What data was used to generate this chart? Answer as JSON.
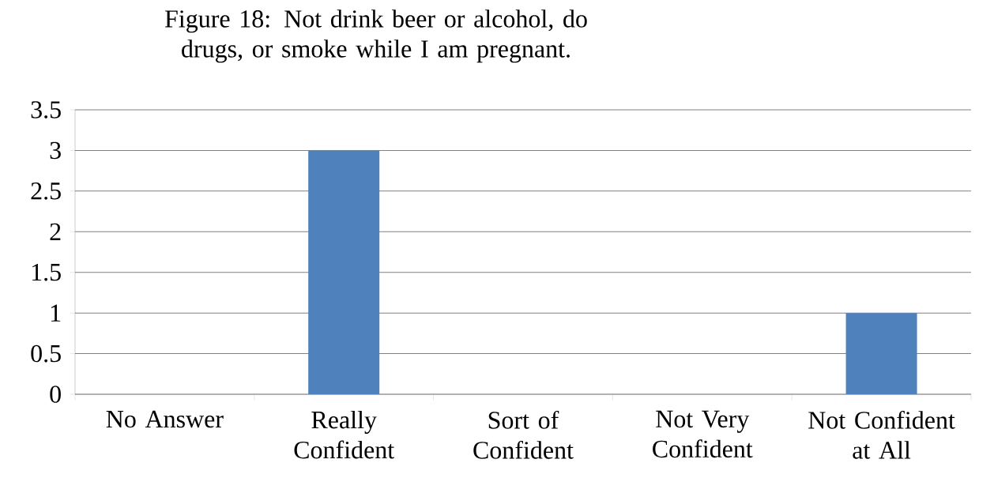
{
  "chart_data": {
    "type": "bar",
    "title": "Figure 18: Not drink beer or alcohol, do drugs, or smoke while I am pregnant.",
    "categories": [
      "No Answer",
      "Really Confident",
      "Sort of Confident",
      "Not Very Confident",
      "Not Confident at All"
    ],
    "values": [
      0,
      3,
      0,
      0,
      1
    ],
    "color": "#4f81bd",
    "ylim": [
      0,
      3.5
    ],
    "yticks": [
      0,
      0.5,
      1,
      1.5,
      2,
      2.5,
      3,
      3.5
    ],
    "grid": "y"
  }
}
